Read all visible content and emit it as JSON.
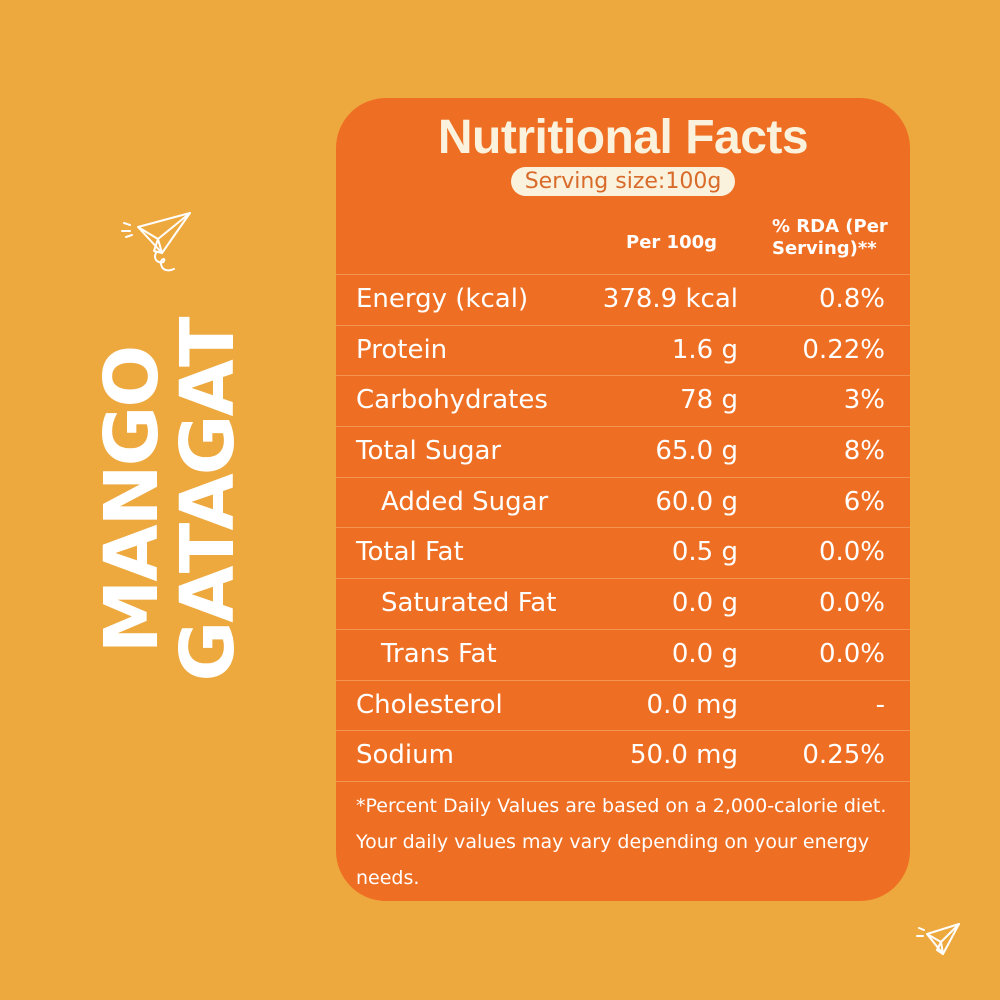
{
  "product": {
    "line1": "MANGO",
    "line2": "GATAGAT"
  },
  "panel": {
    "title": "Nutritional Facts",
    "serving_size": "Serving size:100g",
    "col_per": "Per 100g",
    "col_rda": "% RDA (Per Serving)**",
    "rows": [
      {
        "name": "Energy (kcal)",
        "amount": "378.9 kcal",
        "rda": "0.8%"
      },
      {
        "name": "Protein",
        "amount": "1.6 g",
        "rda": "0.22%"
      },
      {
        "name": "Carbohydrates",
        "amount": "78 g",
        "rda": "3%"
      },
      {
        "name": "Total Sugar",
        "amount": "65.0 g",
        "rda": "8%"
      },
      {
        "name": "Added Sugar",
        "amount": "60.0 g",
        "rda": "6%"
      },
      {
        "name": "Total Fat",
        "amount": "0.5 g",
        "rda": "0.0%"
      },
      {
        "name": "Saturated Fat",
        "amount": "0.0 g",
        "rda": "0.0%"
      },
      {
        "name": "Trans Fat",
        "amount": "0.0 g",
        "rda": "0.0%"
      },
      {
        "name": "Cholesterol",
        "amount": "0.0 mg",
        "rda": "-"
      },
      {
        "name": "Sodium",
        "amount": "50.0 mg",
        "rda": "0.25%"
      }
    ],
    "footnote": "*Percent Daily Values are based on a 2,000-calorie diet. Your daily values may vary depending on your energy needs."
  },
  "decor": {
    "icon": "paper-plane-icon"
  },
  "colors": {
    "background": "#EDA83E",
    "panel": "#EE6F23",
    "cream": "#FBF2DD"
  }
}
